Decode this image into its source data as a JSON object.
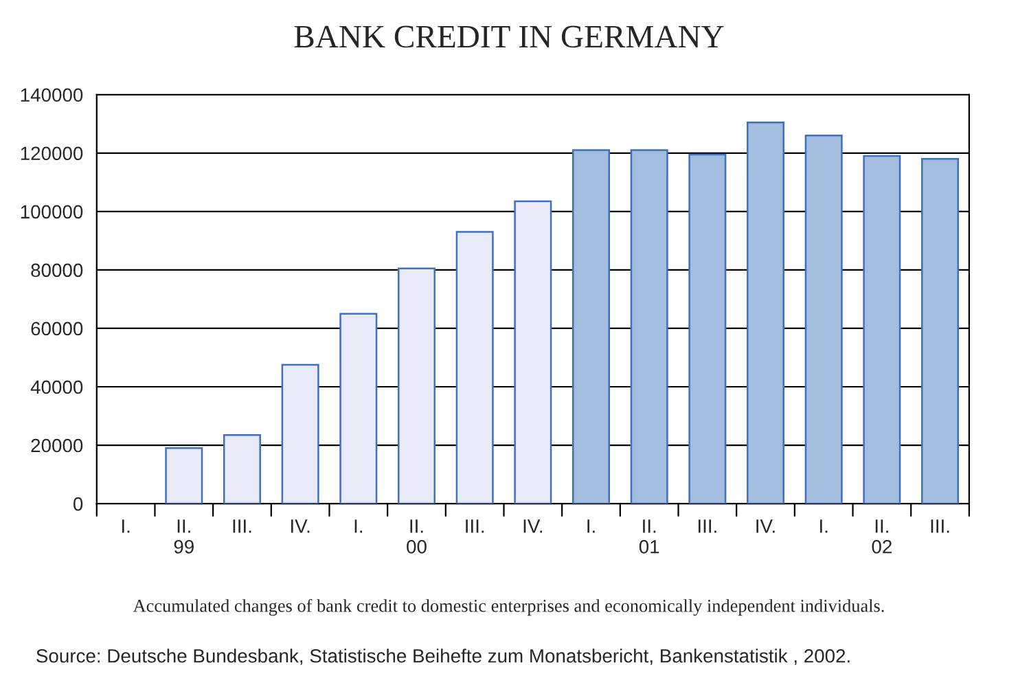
{
  "chart_data": {
    "type": "bar",
    "title": "BANK CREDIT IN GERMANY",
    "categories": [
      "I.",
      "II.\n99",
      "III.",
      "IV.",
      "I.",
      "II.\n00",
      "III.",
      "IV.",
      "I.",
      "II.\n01",
      "III.",
      "IV.",
      "I.",
      "II.\n02",
      "III."
    ],
    "values": [
      null,
      19000,
      23500,
      47500,
      65000,
      80500,
      93000,
      103500,
      121000,
      121000,
      119500,
      130500,
      126000,
      119000,
      118000
    ],
    "colors": [
      "#e8ebf7",
      "#e8ebf7",
      "#e8ebf7",
      "#e8ebf7",
      "#e8ebf7",
      "#e8ebf7",
      "#e8ebf7",
      "#e8ebf7",
      "#a3bddf",
      "#a3bddf",
      "#a3bddf",
      "#a3bddf",
      "#a3bddf",
      "#a3bddf",
      "#a3bddf"
    ],
    "ylim": [
      0,
      140000
    ],
    "yticks": [
      0,
      20000,
      40000,
      60000,
      80000,
      100000,
      120000,
      140000
    ],
    "grid": "y",
    "annotations": [
      "Accumulated changes of bank credit to domestic enterprises and economically independent individuals.",
      "Source: Deutsche Bundesbank, Statistische Beihefte zum Monatsbericht, Bankenstatistik , 2002."
    ]
  }
}
